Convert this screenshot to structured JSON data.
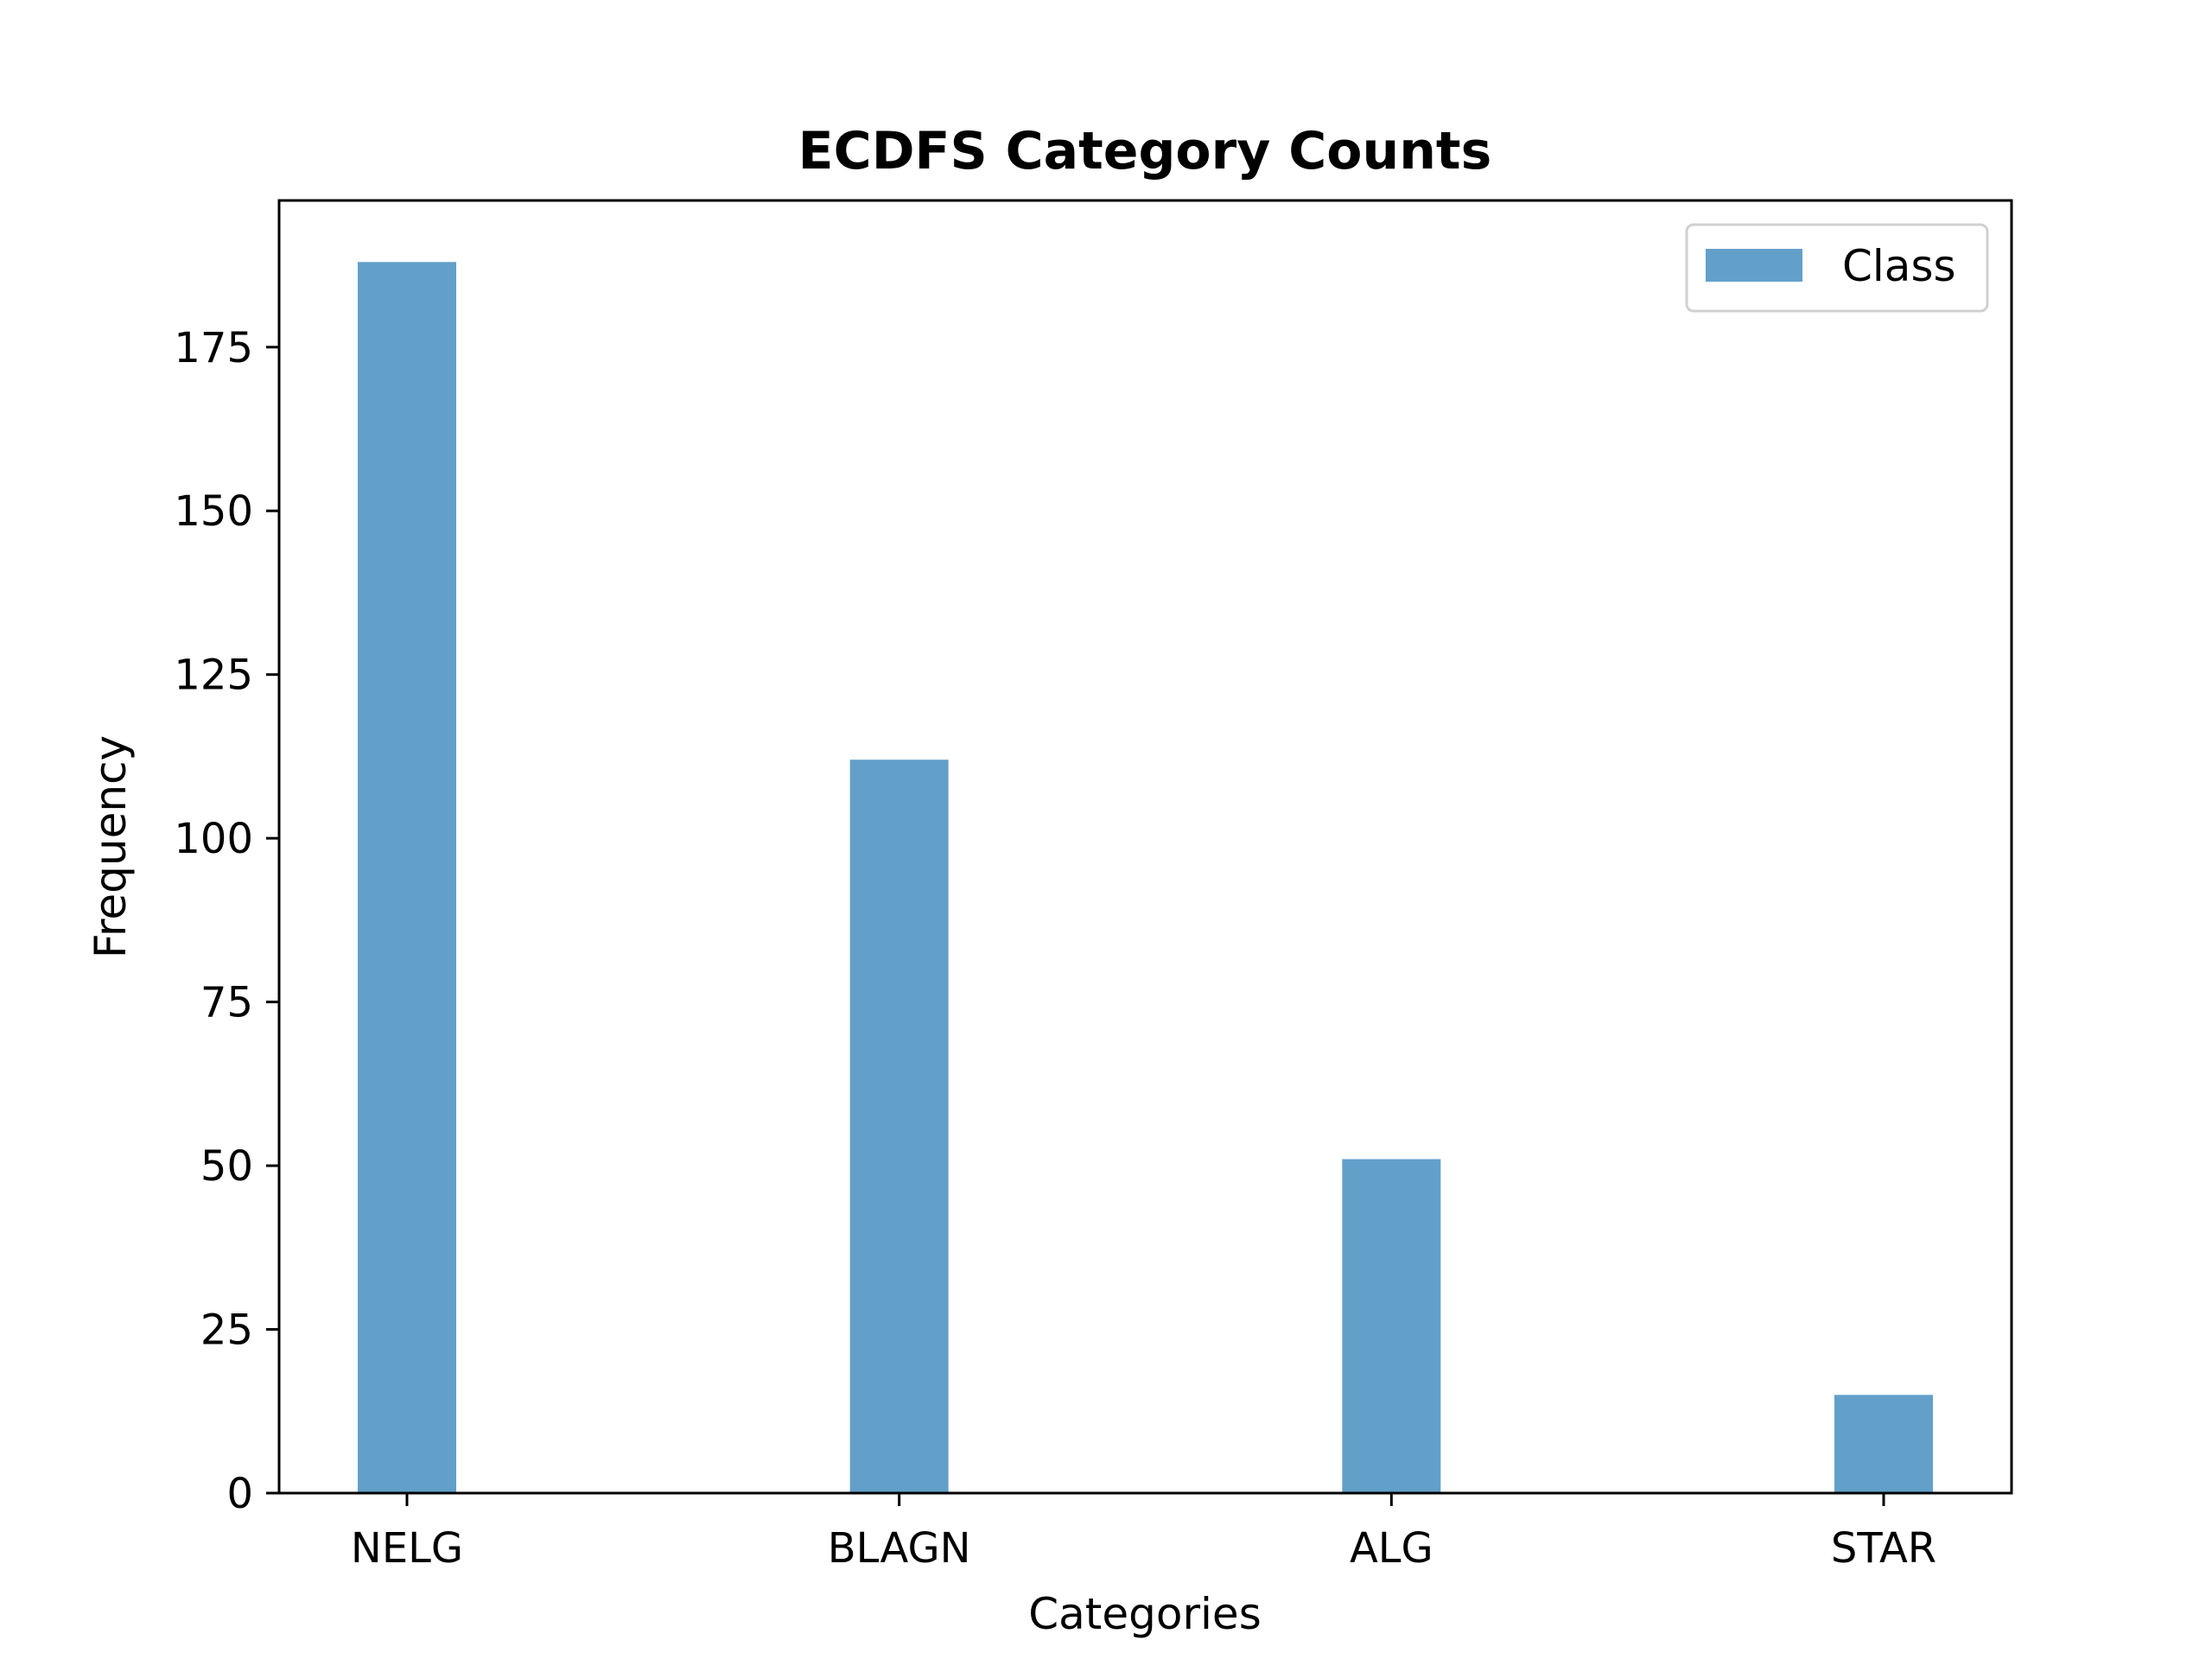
{
  "chart_data": {
    "type": "bar",
    "title": "ECDFS Category Counts",
    "xlabel": "Categories",
    "ylabel": "Frequency",
    "categories": [
      "NELG",
      "BLAGN",
      "ALG",
      "STAR"
    ],
    "series": [
      {
        "name": "Class",
        "values": [
          188,
          112,
          51,
          15
        ],
        "color": "#1f77b4"
      }
    ],
    "ylim": [
      0,
      197.4
    ],
    "yticks": [
      0,
      25,
      50,
      75,
      100,
      125,
      150,
      175
    ],
    "legend_position": "top-right",
    "grid": false
  }
}
